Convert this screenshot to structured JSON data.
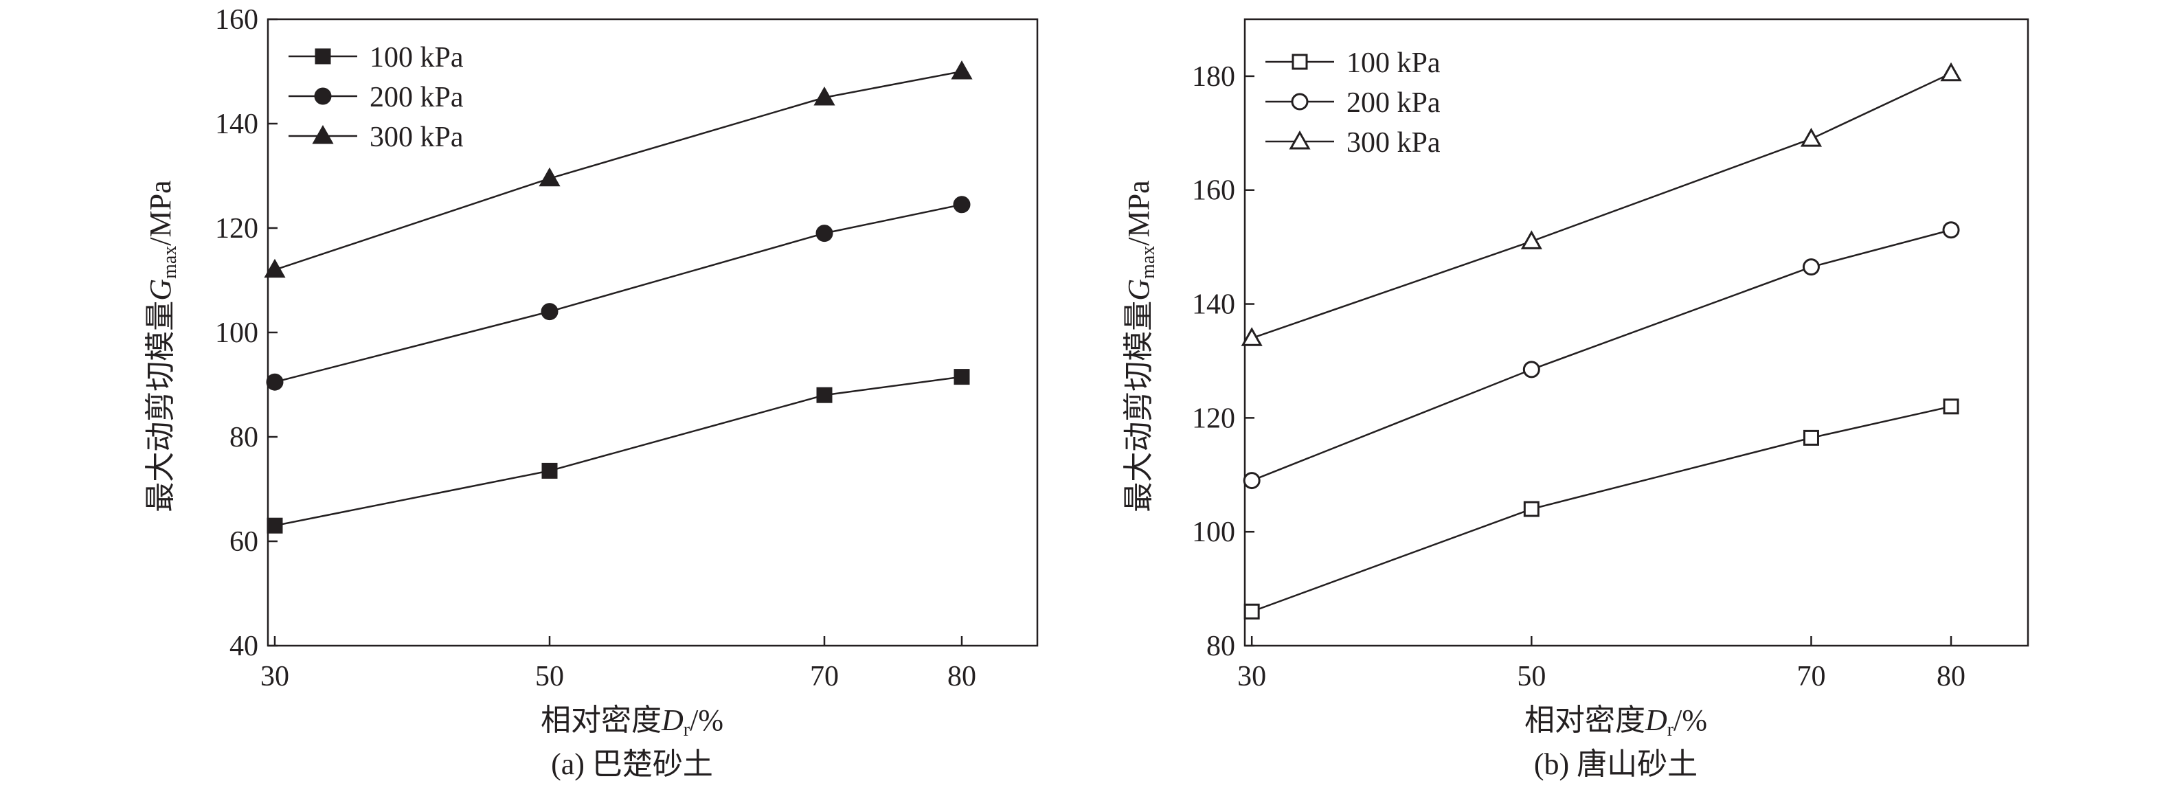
{
  "chart_data": [
    {
      "type": "line",
      "caption": "(a) 巴楚砂土",
      "xlabel_main": "相对密度",
      "xlabel_var": "D",
      "xlabel_sub": "r",
      "xlabel_unit": "/%",
      "ylabel_main": "最大动剪切模量",
      "ylabel_var": "G",
      "ylabel_sub": "max",
      "ylabel_unit": "/MPa",
      "x_ticks": [
        30,
        50,
        70,
        80
      ],
      "y_ticks": [
        40,
        60,
        80,
        100,
        120,
        140,
        160
      ],
      "xlim": [
        29.5,
        85.5
      ],
      "ylim": [
        40,
        160
      ],
      "legend_position": "top-left",
      "series": [
        {
          "name": "100 kPa",
          "marker": "square",
          "filled": true,
          "x": [
            30,
            50,
            70,
            80
          ],
          "values": [
            63,
            73.5,
            88,
            91.5
          ]
        },
        {
          "name": "200 kPa",
          "marker": "circle",
          "filled": true,
          "x": [
            30,
            50,
            70,
            80
          ],
          "values": [
            90.5,
            104,
            119,
            124.5
          ]
        },
        {
          "name": "300 kPa",
          "marker": "triangle",
          "filled": true,
          "x": [
            30,
            50,
            70,
            80
          ],
          "values": [
            112,
            129.5,
            145,
            150
          ]
        }
      ]
    },
    {
      "type": "line",
      "caption": "(b) 唐山砂土",
      "xlabel_main": "相对密度",
      "xlabel_var": "D",
      "xlabel_sub": "r",
      "xlabel_unit": "/%",
      "ylabel_main": "最大动剪切模量",
      "ylabel_var": "G",
      "ylabel_sub": "max",
      "ylabel_unit": "/MPa",
      "x_ticks": [
        30,
        50,
        70,
        80
      ],
      "y_ticks": [
        80,
        100,
        120,
        140,
        160,
        180
      ],
      "xlim": [
        29.5,
        85.5
      ],
      "ylim": [
        80,
        190
      ],
      "legend_position": "top-left",
      "series": [
        {
          "name": "100 kPa",
          "marker": "square",
          "filled": false,
          "x": [
            30,
            50,
            70,
            80
          ],
          "values": [
            86,
            104,
            116.5,
            122
          ]
        },
        {
          "name": "200 kPa",
          "marker": "circle",
          "filled": false,
          "x": [
            30,
            50,
            70,
            80
          ],
          "values": [
            109,
            128.5,
            146.5,
            153
          ]
        },
        {
          "name": "300 kPa",
          "marker": "triangle",
          "filled": false,
          "x": [
            30,
            50,
            70,
            80
          ],
          "values": [
            134,
            151,
            169,
            180.5
          ]
        }
      ]
    }
  ]
}
